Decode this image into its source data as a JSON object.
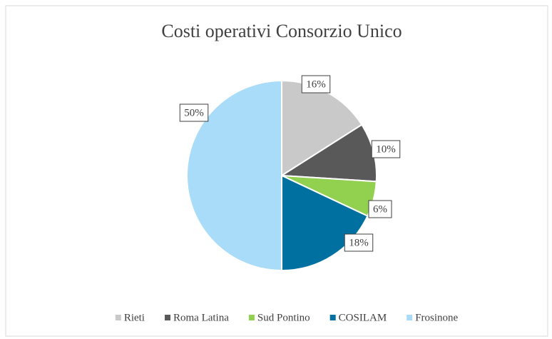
{
  "chart_data": {
    "type": "pie",
    "title": "Costi operativi Consorzio Unico",
    "categories": [
      "Rieti",
      "Roma Latina",
      "Sud Pontino",
      "COSILAM",
      "Frosinone"
    ],
    "values": [
      16,
      10,
      6,
      18,
      50
    ],
    "value_labels": [
      "16%",
      "10%",
      "6%",
      "18%",
      "50%"
    ],
    "colors": [
      "#c9c9c9",
      "#595959",
      "#92d050",
      "#0070a0",
      "#a9dcf8"
    ],
    "legend": "bottom"
  }
}
